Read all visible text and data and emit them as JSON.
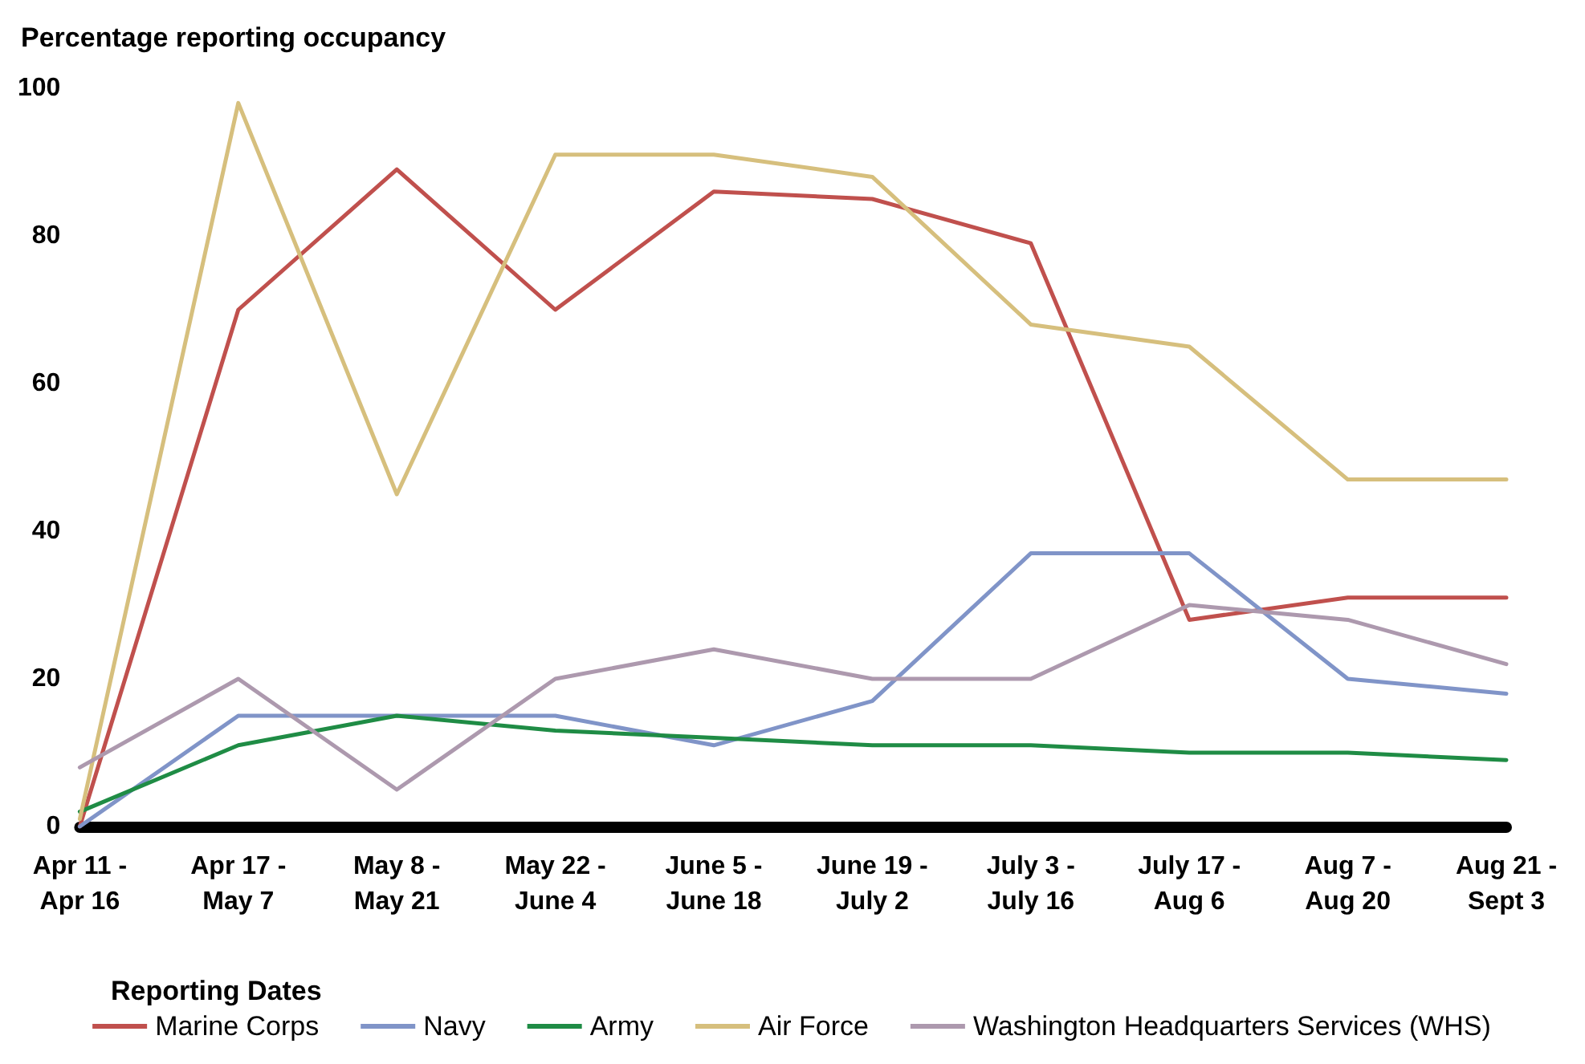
{
  "chart_data": {
    "type": "line",
    "ylabel": "Percentage reporting occupancy",
    "xlabel": "Reporting Dates",
    "categories": [
      "Apr 11 -\nApr 16",
      "Apr 17 -\nMay 7",
      "May 8 -\nMay 21",
      "May 22 -\nJune 4",
      "June 5 -\nJune 18",
      "June 19 -\nJuly 2",
      "July 3 -\nJuly 16",
      "July 17 -\nAug 6",
      "Aug 7 -\nAug 20",
      "Aug 21 -\nSept 3"
    ],
    "series": [
      {
        "name": "Marine Corps",
        "color": "#c0504d",
        "values": [
          0,
          70,
          89,
          70,
          86,
          85,
          79,
          28,
          31,
          31
        ]
      },
      {
        "name": "Navy",
        "color": "#8094c8",
        "values": [
          0,
          15,
          15,
          15,
          11,
          17,
          37,
          37,
          20,
          18
        ]
      },
      {
        "name": "Army",
        "color": "#1f8c45",
        "values": [
          2,
          11,
          15,
          13,
          12,
          11,
          11,
          10,
          10,
          9
        ]
      },
      {
        "name": "Air Force",
        "color": "#d6bf7d",
        "values": [
          1,
          98,
          45,
          91,
          91,
          88,
          68,
          65,
          47,
          47
        ]
      },
      {
        "name": "Washington Headquarters Services (WHS)",
        "color": "#ad99ae",
        "values": [
          8,
          20,
          5,
          20,
          24,
          20,
          20,
          30,
          28,
          22
        ]
      }
    ],
    "ylim": [
      0,
      100
    ],
    "yticks": [
      0,
      20,
      40,
      60,
      80,
      100
    ],
    "grid": false,
    "legend": "bottom",
    "marker": "none",
    "line_style": "solid"
  }
}
